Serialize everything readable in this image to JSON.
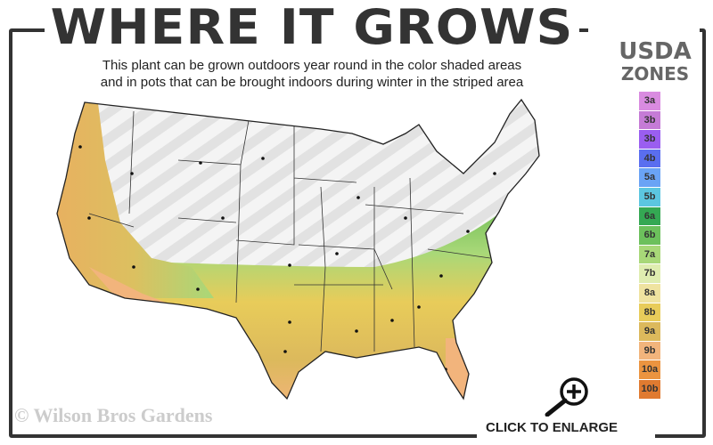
{
  "header": {
    "title": "WHERE IT GROWS",
    "subtitle_line1": "This plant can be grown outdoors year round in the color shaded areas",
    "subtitle_line2": "and in pots that can be brought indoors during winter in the striped area"
  },
  "legend": {
    "title_line1": "USDA",
    "title_line2": "ZONES",
    "zones": [
      {
        "label": "3a",
        "color": "#d98be0"
      },
      {
        "label": "3b",
        "color": "#c57bd6"
      },
      {
        "label": "3b",
        "color": "#9a5ef0"
      },
      {
        "label": "4b",
        "color": "#5a6ef0"
      },
      {
        "label": "5a",
        "color": "#6aa3f5"
      },
      {
        "label": "5b",
        "color": "#5cc6e0"
      },
      {
        "label": "6a",
        "color": "#34a853"
      },
      {
        "label": "6b",
        "color": "#6cc05c"
      },
      {
        "label": "7a",
        "color": "#a8d878"
      },
      {
        "label": "7b",
        "color": "#dfedb0"
      },
      {
        "label": "8a",
        "color": "#efe3a0"
      },
      {
        "label": "8b",
        "color": "#e8cc5a"
      },
      {
        "label": "9a",
        "color": "#dcb95c"
      },
      {
        "label": "9b",
        "color": "#f2b47c"
      },
      {
        "label": "10a",
        "color": "#eb9440"
      },
      {
        "label": "10b",
        "color": "#e07a30"
      }
    ]
  },
  "map": {
    "unshaded_color": "#eeeeee"
  },
  "footer": {
    "copyright": "© Wilson Bros Gardens",
    "enlarge_label": "CLICK TO ENLARGE"
  },
  "icons": {
    "enlarge": "zoom-in-magnifier-icon"
  }
}
